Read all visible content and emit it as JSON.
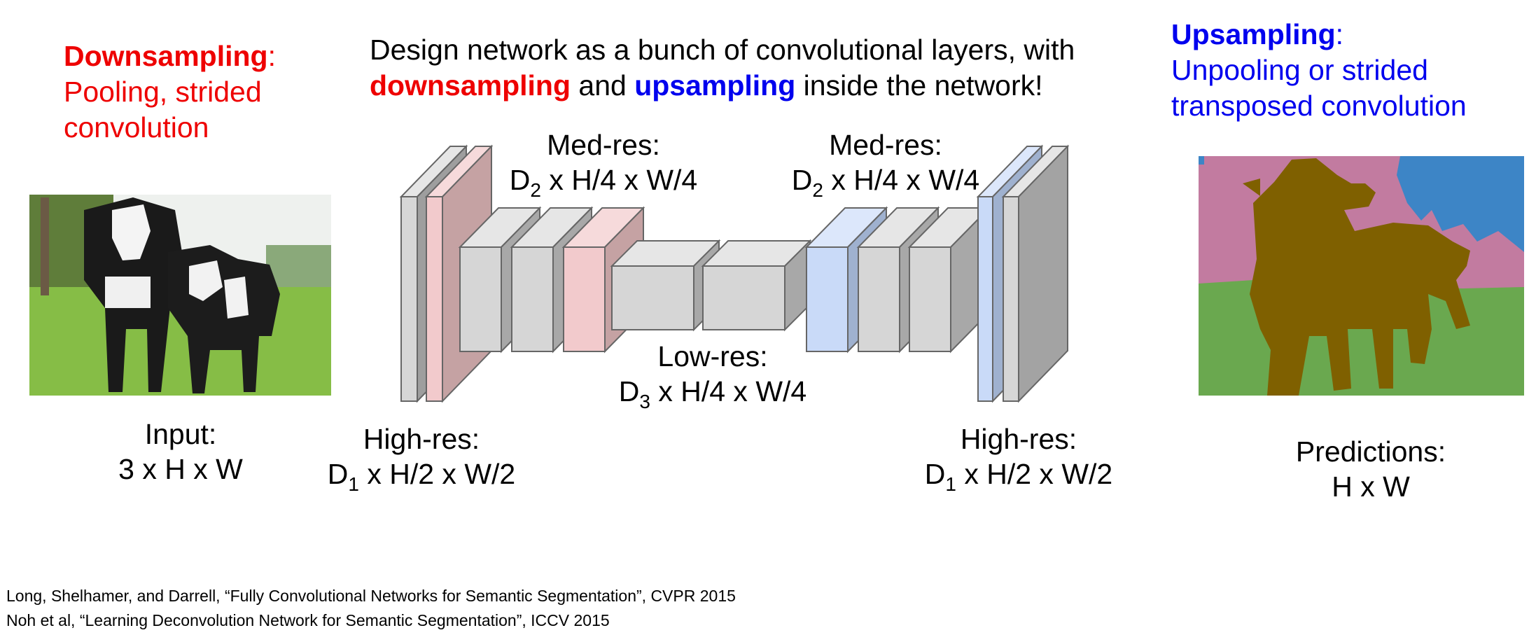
{
  "left_note": {
    "heading": "Downsampling",
    "colon": ":",
    "line1": "Pooling, strided",
    "line2": "convolution"
  },
  "right_note": {
    "heading": "Upsampling",
    "colon": ":",
    "line1": "Unpooling or strided",
    "line2": "transposed convolution"
  },
  "title": {
    "line1": "Design network as a bunch of convolutional layers, with",
    "word_down": "downsampling",
    "word_and": " and ",
    "word_up": "upsampling",
    "rest": " inside the network!"
  },
  "labels": {
    "input": {
      "line1": "Input:",
      "line2": "3 x H x W"
    },
    "high_res_left": {
      "line1": "High-res:",
      "d": "D",
      "sub": "1",
      "dims": " x H/2 x W/2"
    },
    "med_res_left": {
      "line1": "Med-res:",
      "d": "D",
      "sub": "2",
      "dims": " x H/4 x W/4"
    },
    "low_res": {
      "line1": "Low-res:",
      "d": "D",
      "sub": "3",
      "dims": " x H/4 x W/4"
    },
    "med_res_right": {
      "line1": "Med-res:",
      "d": "D",
      "sub": "2",
      "dims": " x H/4 x W/4"
    },
    "high_res_right": {
      "line1": "High-res:",
      "d": "D",
      "sub": "1",
      "dims": " x H/2 x W/2"
    },
    "predictions": {
      "line1": "Predictions:",
      "line2": "H x W"
    }
  },
  "citations": [
    "Long, Shelhamer, and Darrell, “Fully Convolutional Networks for Semantic Segmentation”, CVPR 2015",
    "Noh et al, “Learning Deconvolution Network for Semantic Segmentation”, ICCV 2015"
  ],
  "colors": {
    "downsample": "#ee0000",
    "upsample": "#0000ee",
    "gray_block": "#d6d6d6",
    "pink_block": "#f2cacc",
    "blue_block": "#c9daf8",
    "seg_pink": "#c27ba0",
    "seg_blue": "#3d85c6",
    "seg_green": "#6aa84f",
    "seg_cow": "#7f6000"
  }
}
